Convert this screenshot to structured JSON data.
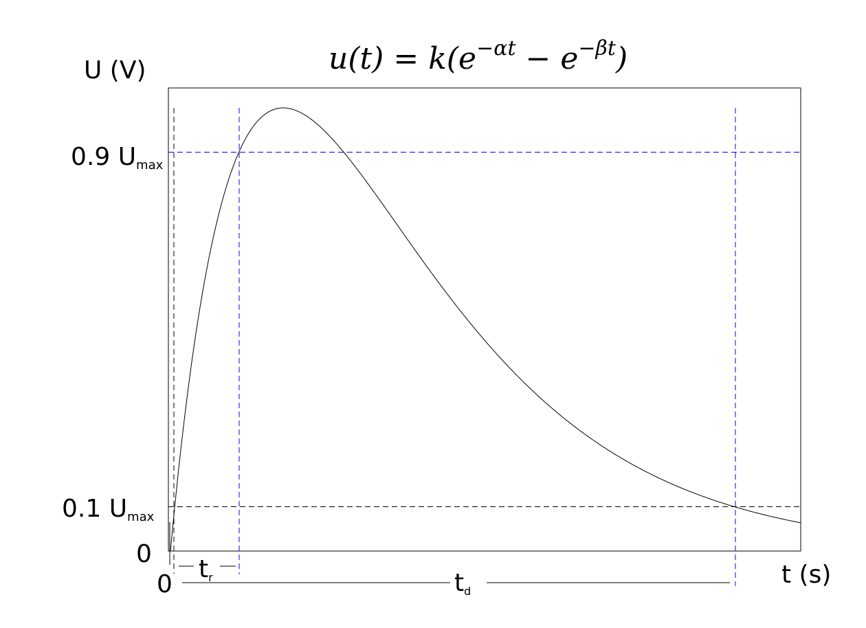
{
  "chart_data": {
    "type": "line",
    "title": "u(t) = k(e^(−αt) − e^(−βt))",
    "title_parts": {
      "lhs": "u(t) = k(e",
      "exp1": "−αt",
      "mid": " − e",
      "exp2": "−βt",
      "rhs": ")"
    },
    "ylabel": "U (V)",
    "xlabel": "t (s)",
    "y_ticks": [
      {
        "label": "0.9 U",
        "sub": "max",
        "level": 0.9
      },
      {
        "label": "0.1 U",
        "sub": "max",
        "level": 0.1
      },
      {
        "label": "0",
        "level": 0
      }
    ],
    "x_origin_label": "0",
    "series": [
      {
        "function": "k(exp(-alpha t) - exp(-beta t))",
        "color": "#000000"
      }
    ],
    "annotations": {
      "rise_time": {
        "label": "t",
        "sub": "r"
      },
      "decay_time": {
        "label": "t",
        "sub": "d"
      }
    },
    "colors": {
      "curve": "#000000",
      "guide_blue": "#0000ff",
      "guide_black": "#000000"
    },
    "grid": false
  }
}
